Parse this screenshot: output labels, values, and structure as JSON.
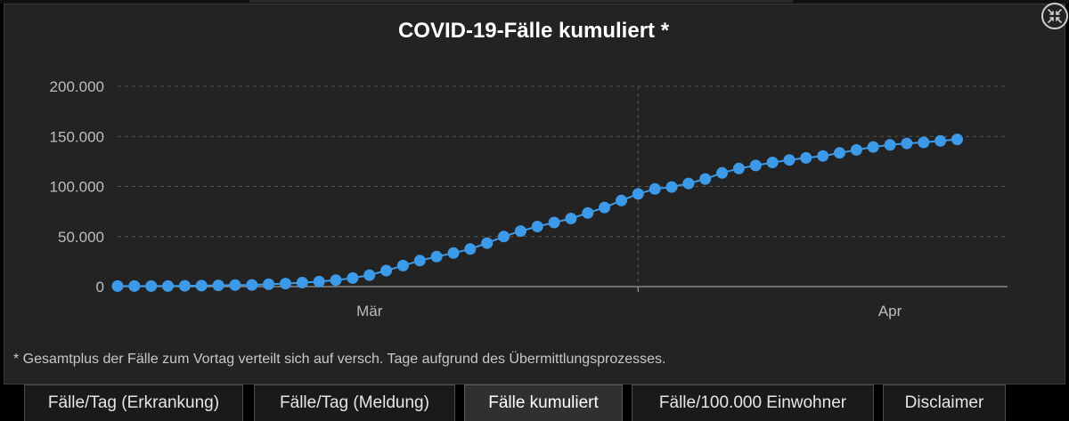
{
  "title": "COVID-19-Fälle kumuliert *",
  "footnote": "* Gesamtplus der Fälle zum Vortag verteilt sich auf versch. Tage aufgrund des Übermittlungsprozesses.",
  "colors": {
    "series": "#3d9ae8",
    "background": "#232323",
    "text": "#ffffff",
    "axis": "#bdbdbd"
  },
  "icons": {
    "collapse": "collapse-arrows-icon"
  },
  "tabs": [
    {
      "label": "Fälle/Tag (Erkrankung)",
      "active": false
    },
    {
      "label": "Fälle/Tag (Meldung)",
      "active": false
    },
    {
      "label": "Fälle kumuliert",
      "active": true
    },
    {
      "label": "Fälle/100.000 Einwohner",
      "active": false
    },
    {
      "label": "Disclaimer",
      "active": false
    }
  ],
  "chart_data": {
    "type": "line",
    "title": "COVID-19-Fälle kumuliert *",
    "xlabel": "",
    "ylabel": "",
    "ylim": [
      0,
      200000
    ],
    "yticks": [
      {
        "value": 0,
        "label": "0"
      },
      {
        "value": 50000,
        "label": "50.000"
      },
      {
        "value": 100000,
        "label": "100.000"
      },
      {
        "value": 150000,
        "label": "150.000"
      },
      {
        "value": 200000,
        "label": "200.000"
      }
    ],
    "x_date_range": [
      "2020-02-15",
      "2020-04-08"
    ],
    "xticks": [
      {
        "date": "2020-03-01",
        "label": "Mär"
      },
      {
        "date": "2020-04-01",
        "label": "Apr"
      }
    ],
    "vertical_marker_date": "2020-03-17",
    "grid": true,
    "series": [
      {
        "dates": [
          "2020-02-15",
          "2020-02-16",
          "2020-02-17",
          "2020-02-18",
          "2020-02-19",
          "2020-02-20",
          "2020-02-21",
          "2020-02-22",
          "2020-02-23",
          "2020-02-24",
          "2020-02-25",
          "2020-02-26",
          "2020-02-27",
          "2020-02-28",
          "2020-02-29",
          "2020-03-01",
          "2020-03-02",
          "2020-03-03",
          "2020-03-04",
          "2020-03-05",
          "2020-03-06",
          "2020-03-07",
          "2020-03-08",
          "2020-03-09",
          "2020-03-10",
          "2020-03-11",
          "2020-03-12",
          "2020-03-13",
          "2020-03-14",
          "2020-03-15",
          "2020-03-16",
          "2020-03-17",
          "2020-03-18",
          "2020-03-19",
          "2020-03-20",
          "2020-03-21",
          "2020-03-22",
          "2020-03-23",
          "2020-03-24",
          "2020-03-25",
          "2020-03-26",
          "2020-03-27",
          "2020-03-28",
          "2020-03-29",
          "2020-03-30",
          "2020-03-31",
          "2020-04-01",
          "2020-04-02",
          "2020-04-03",
          "2020-04-04",
          "2020-04-05"
        ],
        "values": [
          500,
          500,
          500,
          500,
          800,
          1000,
          1200,
          1500,
          1700,
          2300,
          3000,
          4000,
          5000,
          6500,
          8500,
          11500,
          16000,
          21000,
          26000,
          30000,
          33500,
          37500,
          43500,
          50000,
          55500,
          60000,
          64000,
          68000,
          73500,
          79000,
          86000,
          92500,
          97500,
          99500,
          103000,
          107500,
          113500,
          118000,
          121000,
          124000,
          126500,
          128500,
          130500,
          133500,
          136500,
          139500,
          141500,
          143000,
          144000,
          145500,
          147000
        ]
      }
    ]
  }
}
